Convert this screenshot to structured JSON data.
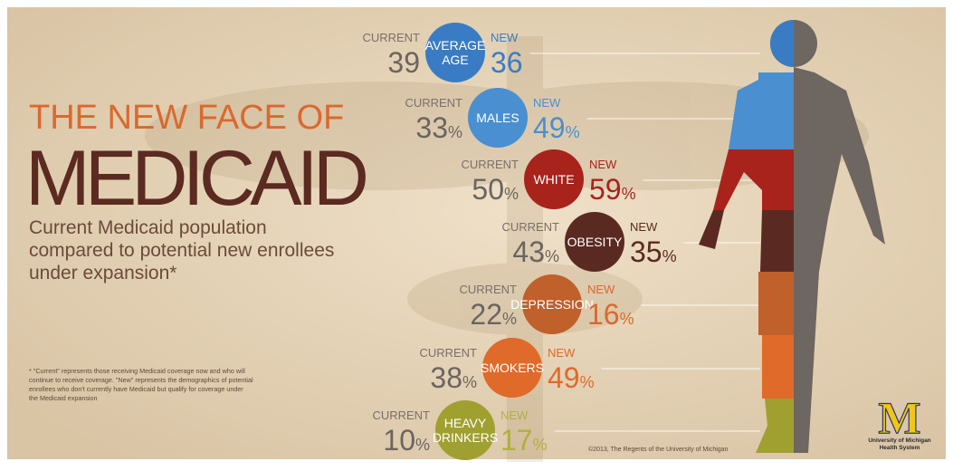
{
  "header": {
    "kicker": "THE NEW FACE OF",
    "title": "MEDICAID",
    "subtitle": [
      "Current Medicaid population",
      "compared to potential new enrollees",
      "under expansion*"
    ]
  },
  "footnote": [
    "* \"Current\" represents those receiving Medicaid coverage now and who will",
    "continue to receive coverage. \"New\" represents the demographics of potential",
    "enrollees who don't currently have Medicaid but qualify for coverage under",
    "the Medicaid expansion"
  ],
  "rows": [
    {
      "label": [
        "AVERAGE",
        "AGE"
      ],
      "current_label": "CURRENT",
      "current": {
        "value": "39"
      },
      "new_label": "NEW",
      "new": {
        "value": "36"
      }
    },
    {
      "label": [
        "MALES"
      ],
      "current_label": "CURRENT",
      "current": {
        "value": "33",
        "unit": "%"
      },
      "new_label": "NEW",
      "new": {
        "value": "49",
        "unit": "%"
      }
    },
    {
      "label": [
        "WHITE"
      ],
      "current_label": "CURRENT",
      "current": {
        "value": "50",
        "unit": "%"
      },
      "new_label": "NEW",
      "new": {
        "value": "59",
        "unit": "%"
      }
    },
    {
      "label": [
        "OBESITY"
      ],
      "current_label": "CURRENT",
      "current": {
        "value": "43",
        "unit": "%"
      },
      "new_label": "NEW",
      "new": {
        "value": "35",
        "unit": "%"
      }
    },
    {
      "label": [
        "DEPRESSION"
      ],
      "current_label": "CURRENT",
      "current": {
        "value": "22",
        "unit": "%"
      },
      "new_label": "NEW",
      "new": {
        "value": "16",
        "unit": "%"
      }
    },
    {
      "label": [
        "SMOKERS"
      ],
      "current_label": "CURRENT",
      "current": {
        "value": "38",
        "unit": "%"
      },
      "new_label": "NEW",
      "new": {
        "value": "49",
        "unit": "%"
      }
    },
    {
      "label": [
        "HEAVY",
        "DRINKERS"
      ],
      "current_label": "CURRENT",
      "current": {
        "value": "10",
        "unit": "%"
      },
      "new_label": "NEW",
      "new": {
        "value": "17",
        "unit": "%"
      }
    }
  ],
  "copyright": "©2013, The Regents of the University of Michigan",
  "logo": {
    "letter": "M",
    "lines": [
      "University of Michigan",
      "Health System"
    ]
  }
}
